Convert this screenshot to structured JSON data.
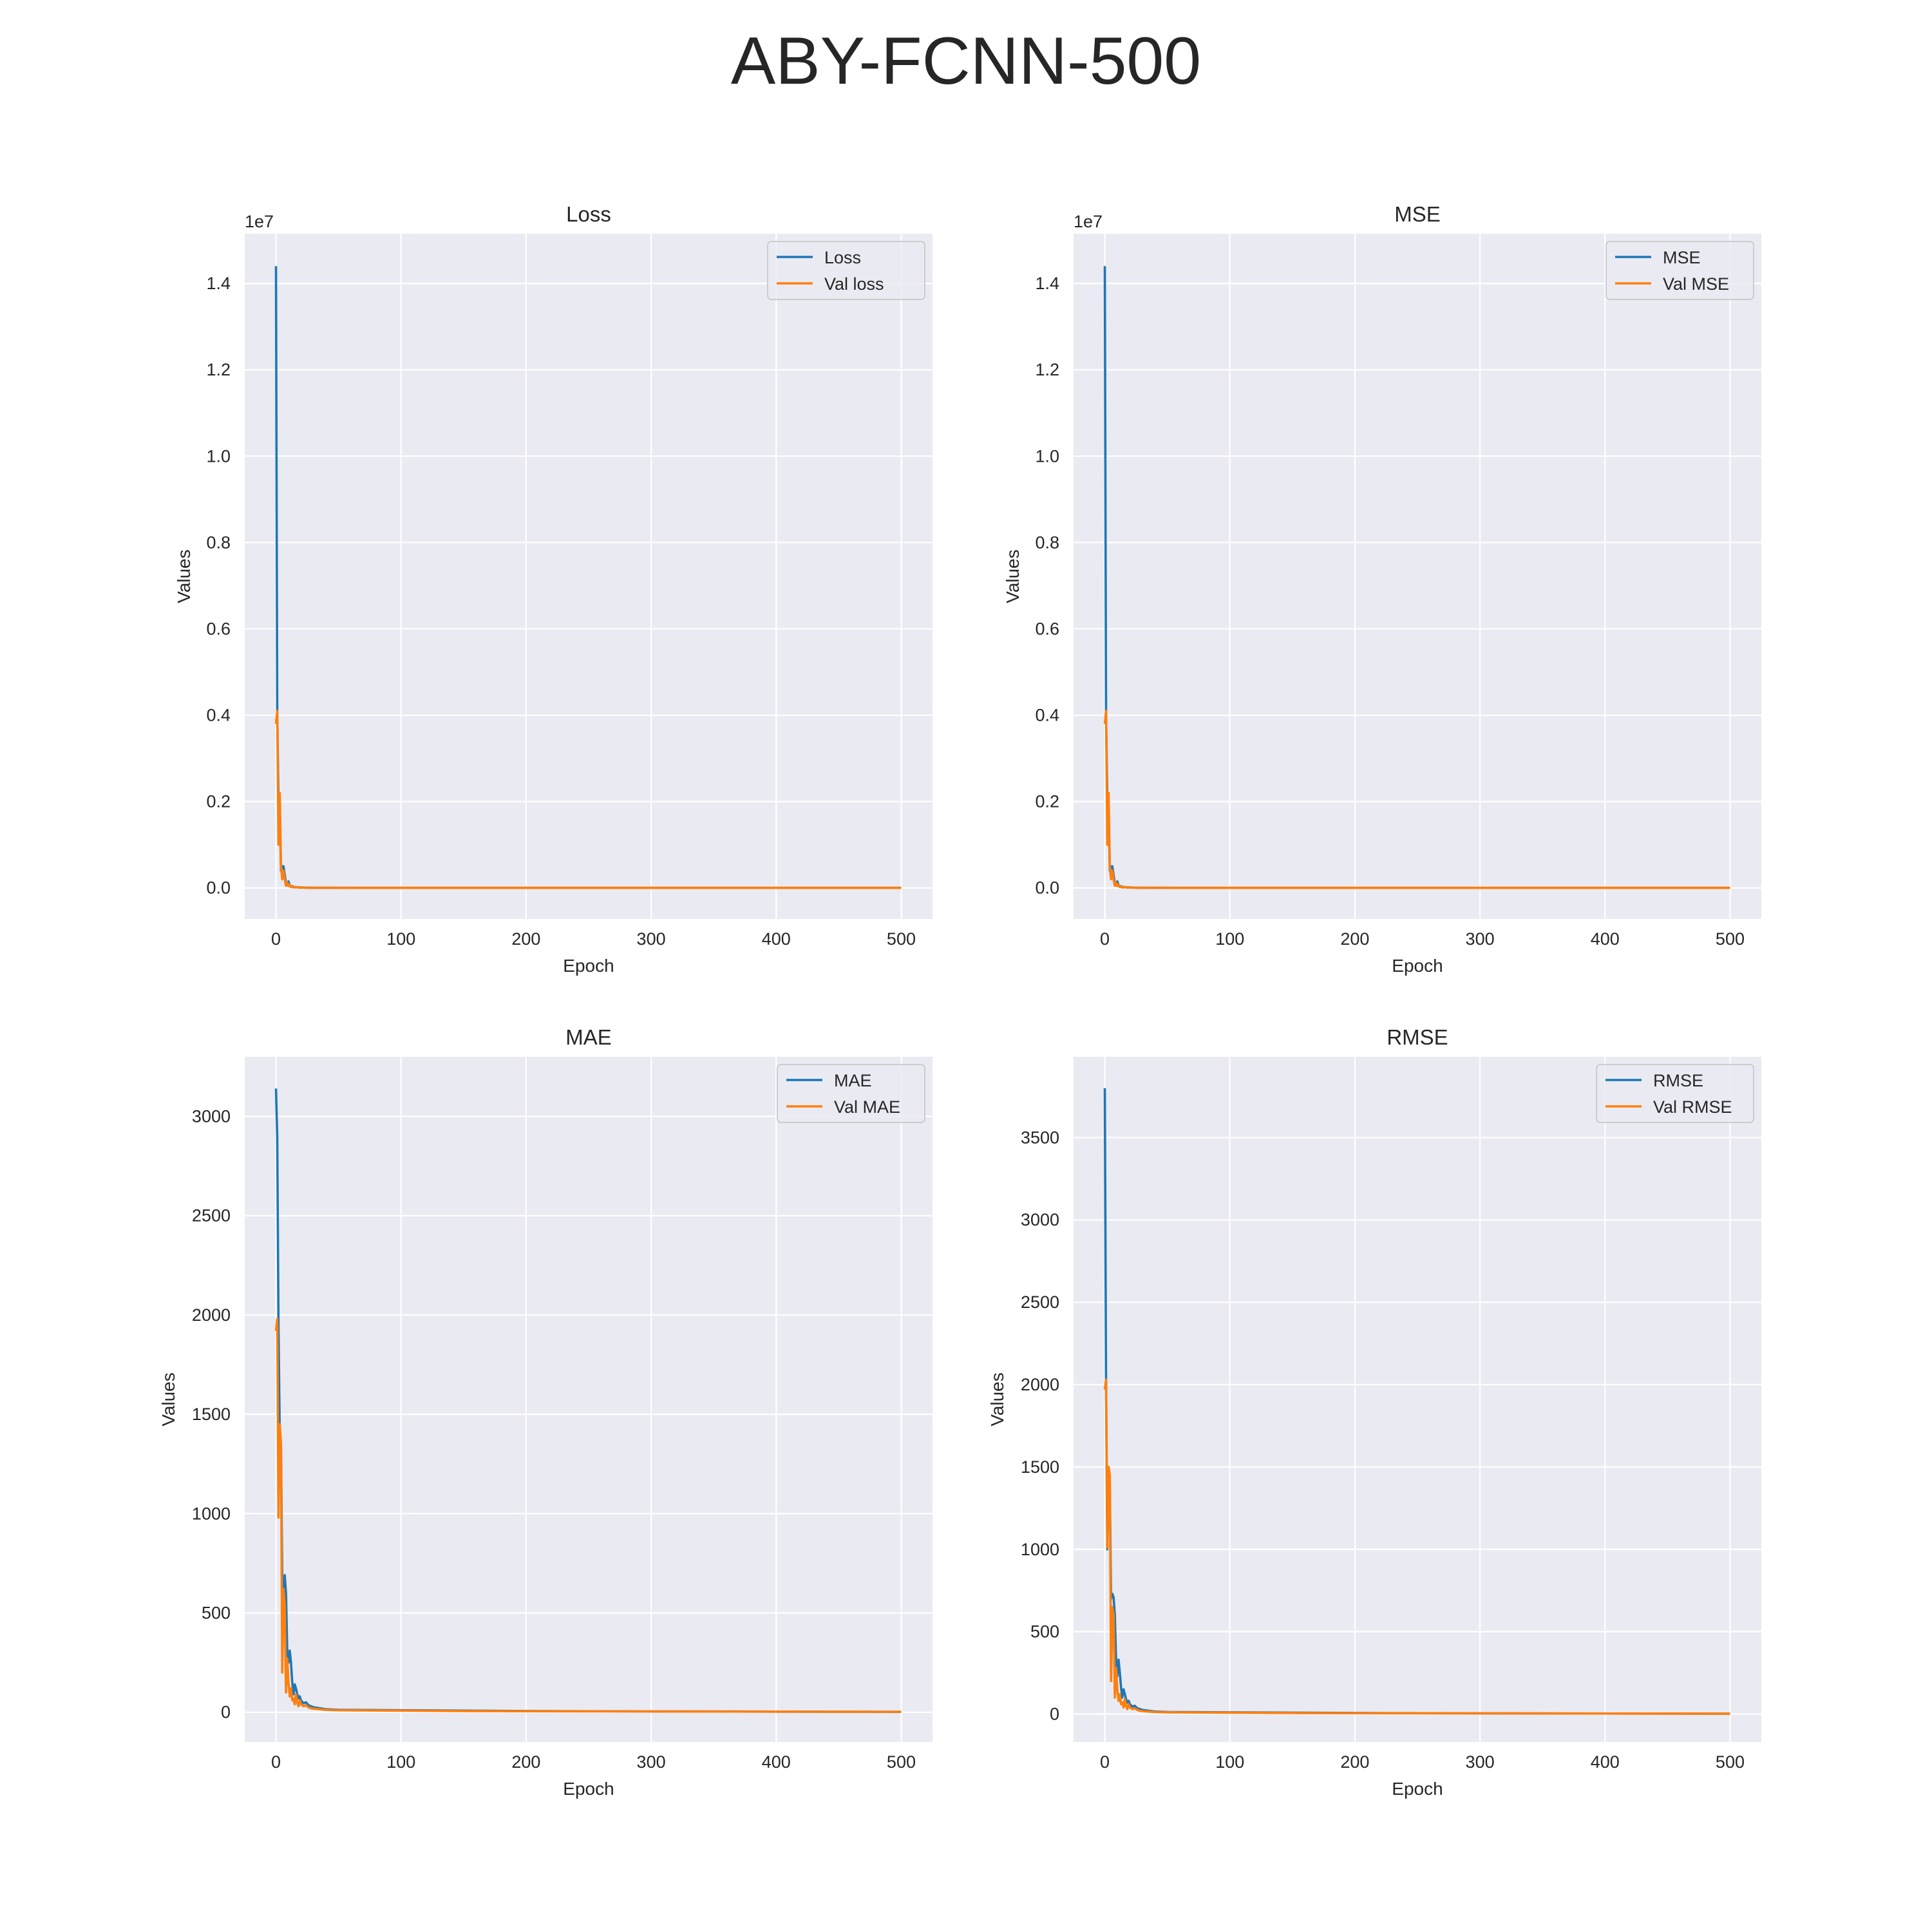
{
  "figure": {
    "title": "ABY-FCNN-500"
  },
  "colors": {
    "train": "#1f77b4",
    "val": "#ff7f0e",
    "panel_bg": "#eaeaf2",
    "grid": "#ffffff",
    "text": "#262626"
  },
  "chart_data": [
    {
      "type": "line",
      "title": "Loss",
      "xlabel": "Epoch",
      "ylabel": "Values",
      "offset_label": "1e7",
      "xlim": [
        -25,
        525
      ],
      "ylim": [
        -0.072,
        1.515
      ],
      "xticks": [
        0,
        100,
        200,
        300,
        400,
        500
      ],
      "yticks": [
        0.0,
        0.2,
        0.4,
        0.6,
        0.8,
        1.0,
        1.2,
        1.4
      ],
      "ytick_labels": [
        "0.0",
        "0.2",
        "0.4",
        "0.6",
        "0.8",
        "1.0",
        "1.2",
        "1.4"
      ],
      "grid": true,
      "legend_position": "top-right",
      "series": [
        {
          "name": "Loss",
          "color": "#1f77b4",
          "x": [
            0,
            1,
            2,
            3,
            4,
            5,
            6,
            7,
            8,
            9,
            10,
            11,
            12,
            13,
            14,
            16,
            18,
            20,
            25,
            30,
            40,
            60,
            100,
            200,
            300,
            400,
            500
          ],
          "y": [
            1.44,
            0.4,
            0.2,
            0.19,
            0.04,
            0.05,
            0.05,
            0.03,
            0.01,
            0.008,
            0.015,
            0.006,
            0.003,
            0.004,
            0.002,
            0.002,
            0.001,
            0.001,
            0.0005,
            0.0003,
            0.0002,
            0.0001,
            0.0001,
            0.0001,
            0.0001,
            0.0001,
            0.0001
          ]
        },
        {
          "name": "Val loss",
          "color": "#ff7f0e",
          "x": [
            0,
            1,
            2,
            3,
            4,
            5,
            6,
            7,
            8,
            9,
            10,
            11,
            12,
            13,
            14,
            16,
            18,
            20,
            25,
            30,
            40,
            60,
            100,
            200,
            300,
            400,
            500
          ],
          "y": [
            0.38,
            0.41,
            0.1,
            0.22,
            0.05,
            0.02,
            0.04,
            0.02,
            0.005,
            0.012,
            0.004,
            0.008,
            0.002,
            0.003,
            0.001,
            0.002,
            0.001,
            0.001,
            0.0005,
            0.0003,
            0.0002,
            0.0001,
            0.0001,
            0.0001,
            0.0001,
            0.0001,
            0.0001
          ]
        }
      ]
    },
    {
      "type": "line",
      "title": "MSE",
      "xlabel": "Epoch",
      "ylabel": "Values",
      "offset_label": "1e7",
      "xlim": [
        -25,
        525
      ],
      "ylim": [
        -0.072,
        1.515
      ],
      "xticks": [
        0,
        100,
        200,
        300,
        400,
        500
      ],
      "yticks": [
        0.0,
        0.2,
        0.4,
        0.6,
        0.8,
        1.0,
        1.2,
        1.4
      ],
      "ytick_labels": [
        "0.0",
        "0.2",
        "0.4",
        "0.6",
        "0.8",
        "1.0",
        "1.2",
        "1.4"
      ],
      "grid": true,
      "legend_position": "top-right",
      "series": [
        {
          "name": "MSE",
          "color": "#1f77b4",
          "x": [
            0,
            1,
            2,
            3,
            4,
            5,
            6,
            7,
            8,
            9,
            10,
            11,
            12,
            13,
            14,
            16,
            18,
            20,
            25,
            30,
            40,
            60,
            100,
            200,
            300,
            400,
            500
          ],
          "y": [
            1.44,
            0.4,
            0.2,
            0.19,
            0.04,
            0.05,
            0.05,
            0.03,
            0.01,
            0.008,
            0.015,
            0.006,
            0.003,
            0.004,
            0.002,
            0.002,
            0.001,
            0.001,
            0.0005,
            0.0003,
            0.0002,
            0.0001,
            0.0001,
            0.0001,
            0.0001,
            0.0001,
            0.0001
          ]
        },
        {
          "name": "Val MSE",
          "color": "#ff7f0e",
          "x": [
            0,
            1,
            2,
            3,
            4,
            5,
            6,
            7,
            8,
            9,
            10,
            11,
            12,
            13,
            14,
            16,
            18,
            20,
            25,
            30,
            40,
            60,
            100,
            200,
            300,
            400,
            500
          ],
          "y": [
            0.38,
            0.41,
            0.1,
            0.22,
            0.05,
            0.02,
            0.04,
            0.02,
            0.005,
            0.012,
            0.004,
            0.008,
            0.002,
            0.003,
            0.001,
            0.002,
            0.001,
            0.001,
            0.0005,
            0.0003,
            0.0002,
            0.0001,
            0.0001,
            0.0001,
            0.0001,
            0.0001,
            0.0001
          ]
        }
      ]
    },
    {
      "type": "line",
      "title": "MAE",
      "xlabel": "Epoch",
      "ylabel": "Values",
      "offset_label": "",
      "xlim": [
        -25,
        525
      ],
      "ylim": [
        -150,
        3300
      ],
      "xticks": [
        0,
        100,
        200,
        300,
        400,
        500
      ],
      "yticks": [
        0,
        500,
        1000,
        1500,
        2000,
        2500,
        3000
      ],
      "ytick_labels": [
        "0",
        "500",
        "1000",
        "1500",
        "2000",
        "2500",
        "3000"
      ],
      "grid": true,
      "legend_position": "top-right",
      "series": [
        {
          "name": "MAE",
          "color": "#1f77b4",
          "x": [
            0,
            1,
            2,
            3,
            4,
            5,
            6,
            7,
            8,
            9,
            10,
            11,
            12,
            13,
            14,
            15,
            16,
            17,
            18,
            19,
            20,
            22,
            24,
            26,
            28,
            30,
            35,
            40,
            50,
            100,
            150,
            200,
            300,
            400,
            500
          ],
          "y": [
            3140,
            2900,
            1950,
            1400,
            1330,
            680,
            600,
            690,
            600,
            310,
            250,
            310,
            250,
            150,
            90,
            140,
            120,
            90,
            70,
            80,
            60,
            45,
            50,
            35,
            30,
            25,
            20,
            15,
            12,
            10,
            8,
            6,
            4,
            3,
            2
          ]
        },
        {
          "name": "Val MAE",
          "color": "#ff7f0e",
          "x": [
            0,
            1,
            2,
            3,
            4,
            5,
            6,
            7,
            8,
            9,
            10,
            11,
            12,
            13,
            14,
            15,
            16,
            17,
            18,
            19,
            20,
            22,
            24,
            26,
            28,
            30,
            35,
            40,
            50,
            100,
            150,
            200,
            300,
            400,
            500
          ],
          "y": [
            1920,
            1980,
            980,
            1450,
            1350,
            200,
            620,
            540,
            100,
            270,
            150,
            80,
            120,
            60,
            70,
            40,
            90,
            50,
            30,
            60,
            40,
            30,
            35,
            25,
            20,
            18,
            15,
            12,
            10,
            8,
            6,
            5,
            4,
            3,
            2
          ]
        }
      ]
    },
    {
      "type": "line",
      "title": "RMSE",
      "xlabel": "Epoch",
      "ylabel": "Values",
      "offset_label": "",
      "xlim": [
        -25,
        525
      ],
      "ylim": [
        -170,
        3990
      ],
      "xticks": [
        0,
        100,
        200,
        300,
        400,
        500
      ],
      "yticks": [
        0,
        500,
        1000,
        1500,
        2000,
        2500,
        3000,
        3500
      ],
      "ytick_labels": [
        "0",
        "500",
        "1000",
        "1500",
        "2000",
        "2500",
        "3000",
        "3500"
      ],
      "grid": true,
      "legend_position": "top-right",
      "series": [
        {
          "name": "RMSE",
          "color": "#1f77b4",
          "x": [
            0,
            1,
            2,
            3,
            4,
            5,
            6,
            7,
            8,
            9,
            10,
            11,
            12,
            13,
            14,
            15,
            16,
            17,
            18,
            19,
            20,
            22,
            24,
            26,
            28,
            30,
            35,
            40,
            50,
            100,
            150,
            200,
            300,
            400,
            500
          ],
          "y": [
            3800,
            2000,
            1000,
            1400,
            1380,
            700,
            730,
            710,
            600,
            330,
            230,
            330,
            250,
            160,
            100,
            150,
            120,
            90,
            70,
            80,
            60,
            45,
            50,
            35,
            30,
            25,
            20,
            15,
            12,
            10,
            8,
            6,
            4,
            3,
            2
          ]
        },
        {
          "name": "Val RMSE",
          "color": "#ff7f0e",
          "x": [
            0,
            1,
            2,
            3,
            4,
            5,
            6,
            7,
            8,
            9,
            10,
            11,
            12,
            13,
            14,
            15,
            16,
            17,
            18,
            19,
            20,
            22,
            24,
            26,
            28,
            30,
            35,
            40,
            50,
            100,
            150,
            200,
            300,
            400,
            500
          ],
          "y": [
            1970,
            2030,
            1010,
            1500,
            1450,
            200,
            650,
            600,
            100,
            280,
            150,
            80,
            120,
            60,
            70,
            40,
            90,
            50,
            30,
            60,
            40,
            30,
            35,
            25,
            20,
            18,
            15,
            12,
            10,
            8,
            6,
            5,
            4,
            3,
            2
          ]
        }
      ]
    }
  ]
}
